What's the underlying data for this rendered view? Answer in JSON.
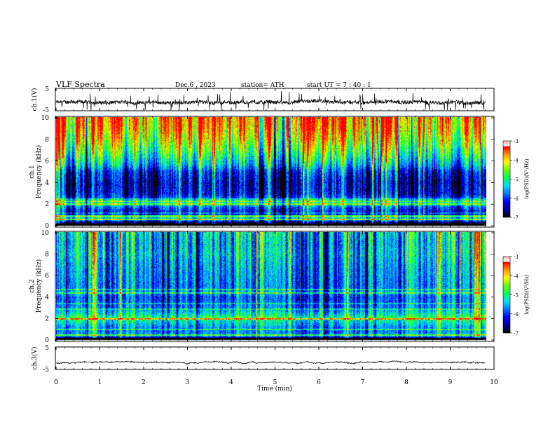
{
  "header": {
    "title": "VLF  Spectra",
    "date": "Dec.6  , 2023",
    "station": "station= ATH",
    "start": "start  UT  =   7  : 40 : 1"
  },
  "colors": {
    "spectrum": [
      "#000000",
      "#00009a",
      "#0000ff",
      "#0078ff",
      "#00dcff",
      "#00ff5a",
      "#64ff00",
      "#ffff00",
      "#ff9600",
      "#ff0000",
      "#ffffff"
    ]
  },
  "chart_data": [
    {
      "id": "ch1-waveform",
      "type": "line",
      "ylabel": "ch.1(V)",
      "yticks": [
        "5",
        "-5"
      ],
      "ylim": [
        -5,
        5
      ],
      "xlim": [
        0,
        10
      ],
      "signal_level": -1.2,
      "data_end": 9.8
    },
    {
      "id": "ch1-spectrogram",
      "type": "heatmap",
      "ylabel_ch": "ch.1",
      "ylabel": "Frequency  (kHz)",
      "yticks": [
        "0",
        "2",
        "4",
        "6",
        "8",
        "10"
      ],
      "ylim": [
        0,
        10
      ],
      "xlim": [
        0,
        10
      ],
      "colorbar": {
        "label": "log(PSD)(V²/Hz)",
        "ticks": [
          "-3",
          "-4",
          "-5",
          "-6",
          "-7"
        ],
        "range": [
          -7,
          -3
        ]
      },
      "profile": [
        [
          0.0,
          -6.6
        ],
        [
          0.2,
          -6.9
        ],
        [
          0.35,
          -6.7
        ],
        [
          0.6,
          -5.2
        ],
        [
          0.9,
          -5.3
        ],
        [
          1.1,
          -6.2
        ],
        [
          1.5,
          -6.0
        ],
        [
          1.8,
          -5.6
        ],
        [
          2.1,
          -4.9
        ],
        [
          2.3,
          -5.0
        ],
        [
          2.5,
          -5.7
        ],
        [
          3.0,
          -6.2
        ],
        [
          4.0,
          -6.3
        ],
        [
          5.0,
          -6.0
        ],
        [
          5.6,
          -5.3
        ],
        [
          6.2,
          -4.9
        ],
        [
          7.0,
          -4.4
        ],
        [
          8.0,
          -3.9
        ],
        [
          9.0,
          -3.5
        ],
        [
          10.0,
          -3.3
        ]
      ]
    },
    {
      "id": "ch2-spectrogram",
      "type": "heatmap",
      "ylabel_ch": "ch.2",
      "ylabel": "Frequency  (kHz)",
      "yticks": [
        "0",
        "2",
        "4",
        "6",
        "8",
        "10"
      ],
      "ylim": [
        0,
        10
      ],
      "xlim": [
        0,
        10
      ],
      "colorbar": {
        "label": "log(PSD)(V²/Hz)",
        "ticks": [
          "-3",
          "-4",
          "-5",
          "-6",
          "-7"
        ],
        "range": [
          -7,
          -3
        ]
      },
      "profile": [
        [
          0.0,
          -6.6
        ],
        [
          0.2,
          -6.8
        ],
        [
          0.4,
          -5.4
        ],
        [
          0.8,
          -5.6
        ],
        [
          1.2,
          -5.5
        ],
        [
          1.8,
          -5.0
        ],
        [
          2.1,
          -4.6
        ],
        [
          2.4,
          -5.0
        ],
        [
          3.0,
          -5.6
        ],
        [
          4.0,
          -5.8
        ],
        [
          4.4,
          -5.4
        ],
        [
          5.0,
          -5.6
        ],
        [
          6.0,
          -5.5
        ],
        [
          7.0,
          -5.4
        ],
        [
          8.0,
          -5.2
        ],
        [
          9.0,
          -5.3
        ],
        [
          10.0,
          -5.1
        ]
      ]
    },
    {
      "id": "ch3-waveform",
      "type": "line",
      "ylabel": "ch.3(V)",
      "yticks": [
        "5",
        "-5"
      ],
      "ylim": [
        -5,
        5
      ],
      "xlim": [
        0,
        10
      ],
      "signal_level": -1.9,
      "data_end": 9.8,
      "xlabel": "Time  (min)",
      "xticks": [
        "0",
        "1",
        "2",
        "3",
        "4",
        "5",
        "6",
        "7",
        "8",
        "9",
        "10"
      ]
    }
  ]
}
